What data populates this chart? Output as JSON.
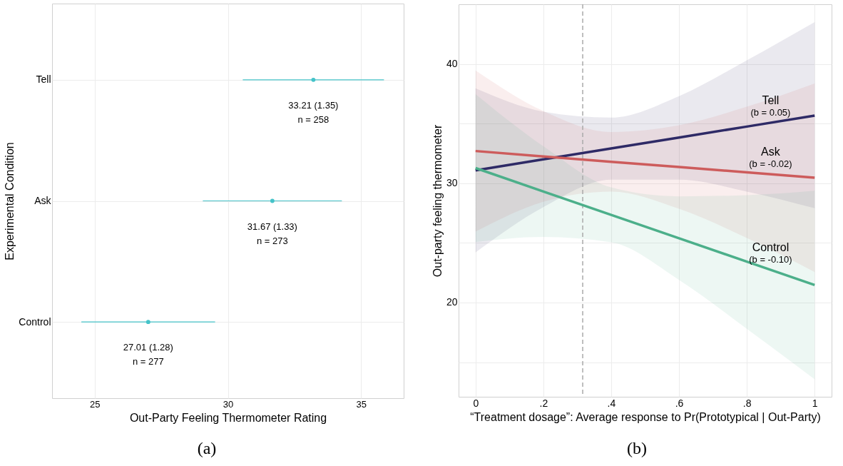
{
  "chart_data": [
    {
      "type": "scatter",
      "orientation": "horizontal",
      "xlabel": "Out-Party Feeling Thermometer Rating",
      "ylabel": "Experimental Condition",
      "categories": [
        "Tell",
        "Ask",
        "Control"
      ],
      "values": [
        33.21,
        31.67,
        27.01
      ],
      "errors": [
        2.65,
        2.61,
        2.51
      ],
      "color": "#45c3c9",
      "xlim": [
        23.4,
        36.6
      ],
      "xticks": [
        25,
        30,
        35
      ],
      "grid": true,
      "marker": "circle",
      "annotations": [
        {
          "text": "33.21 (1.35)\nn = 258",
          "x": 33.21,
          "y": "Tell"
        },
        {
          "text": "31.67 (1.33)\nn = 273",
          "x": 31.67,
          "y": "Ask"
        },
        {
          "text": "27.01 (1.28)\nn = 277",
          "x": 27.01,
          "y": "Control"
        },
        "(a)"
      ]
    },
    {
      "type": "line",
      "xlabel": "“Treatment dosage”: Average response to Pr(Prototypical | Out-Party)",
      "ylabel": "Out-party feeling thermometer",
      "x": [
        0,
        0.2,
        0.4,
        0.6,
        0.8,
        1
      ],
      "series": [
        {
          "name": "Tell",
          "color": "#2e2a66",
          "values": [
            31.08,
            32.0,
            32.92,
            33.83,
            34.75,
            35.67
          ],
          "lower": [
            24.2,
            28.0,
            30.3,
            30.3,
            29.3,
            27.9
          ],
          "upper": [
            37.95,
            36.0,
            35.5,
            37.3,
            40.3,
            43.5
          ]
        },
        {
          "name": "Ask",
          "color": "#cd5c5c",
          "values": [
            32.7,
            32.25,
            31.8,
            31.36,
            30.91,
            30.46
          ],
          "lower": [
            25.95,
            28.45,
            29.3,
            27.86,
            25.41,
            22.56
          ],
          "upper": [
            39.45,
            36.05,
            34.3,
            34.86,
            36.41,
            38.36
          ]
        },
        {
          "name": "Control",
          "color": "#4caf8a",
          "values": [
            31.27,
            29.31,
            27.35,
            25.39,
            23.43,
            21.47
          ],
          "lower": [
            25.07,
            25.5,
            25.05,
            21.9,
            17.8,
            13.57
          ],
          "upper": [
            37.47,
            33.1,
            29.65,
            28.9,
            29.0,
            29.37
          ]
        }
      ],
      "xlim": [
        -0.05,
        1.05
      ],
      "xticks": [
        0,
        {
          "value": 0.2,
          "label": ".2"
        },
        {
          "value": 0.4,
          "label": ".4"
        },
        {
          "value": 0.6,
          "label": ".6"
        },
        {
          "value": 0.8,
          "label": ".8"
        },
        1
      ],
      "ylim": [
        12.1,
        45.0
      ],
      "yticks": [
        {
          "value": 15,
          "label": null
        },
        20,
        {
          "value": 25,
          "label": null
        },
        30,
        {
          "value": 35,
          "label": null
        },
        40
      ],
      "grid": true,
      "legend": false,
      "line_style": "solid",
      "ref_lines": [
        {
          "axis": "x",
          "value": 0.316,
          "color": "#aaaaaa",
          "line_style": "dashed"
        }
      ],
      "annotations": [
        "(b = 0.05)",
        "(b = -0.02)",
        "(b = -0.10)",
        "(b)"
      ]
    }
  ]
}
